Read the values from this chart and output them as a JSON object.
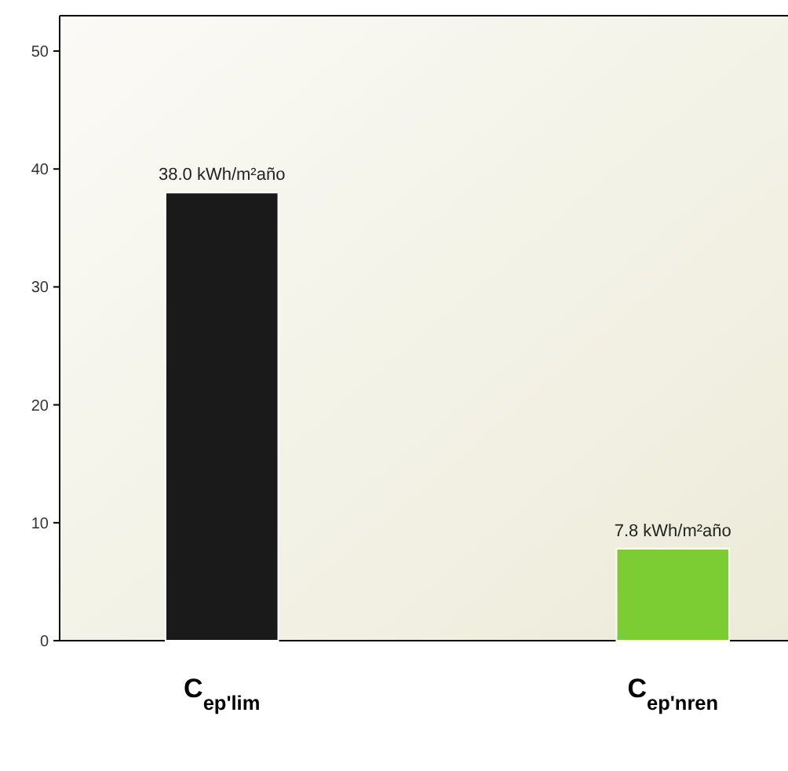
{
  "chart_data": {
    "type": "bar",
    "categories": [
      "C$_{ep'lim}$",
      "C$_{ep'nren}$"
    ],
    "values": [
      38.0,
      7.8
    ],
    "colors": [
      "#1a1a1a",
      "#7ccc34"
    ],
    "value_labels": [
      "38.0  kWh/m²año",
      "7.8  kWh/m²año"
    ],
    "ylim": [
      0,
      53
    ],
    "yticks": [
      0,
      10,
      20,
      30,
      40,
      50
    ],
    "grid": false
  }
}
